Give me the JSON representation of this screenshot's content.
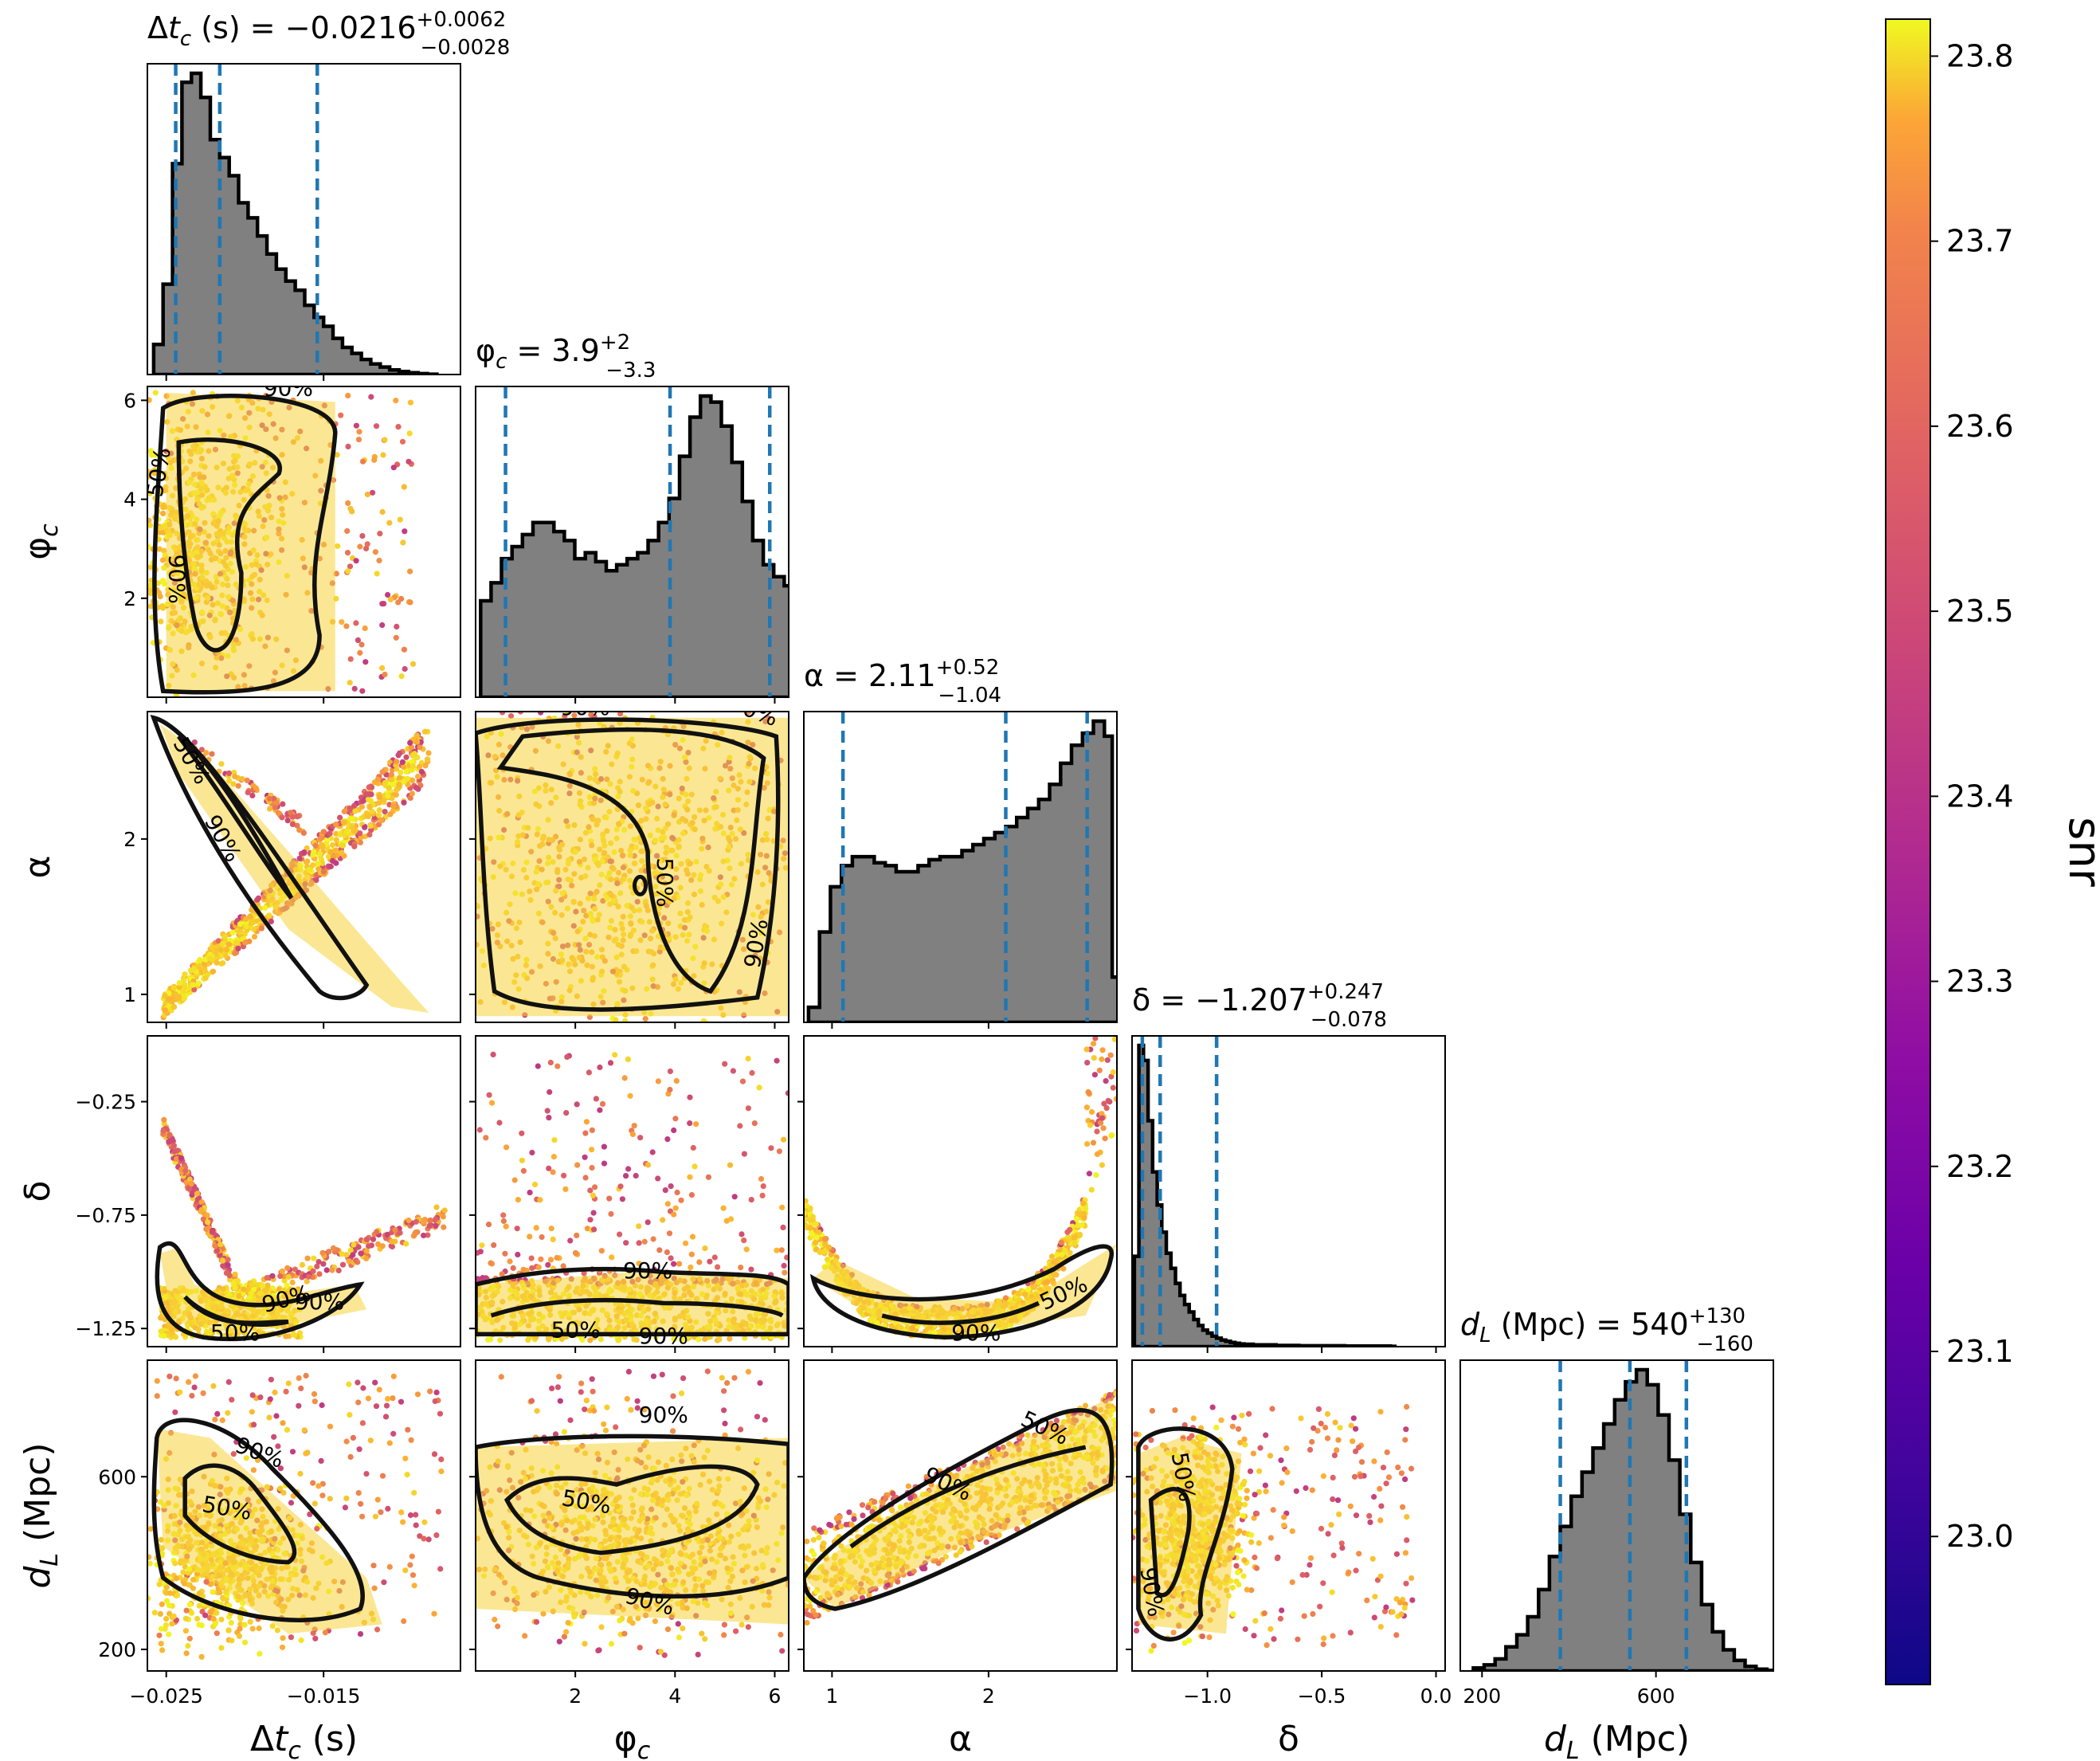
{
  "chart_data": {
    "type": "corner",
    "parameters": [
      {
        "key": "dtc",
        "xlabel": "Δt_c (s)",
        "ylabel": "",
        "title_name": "Δt_c (s)",
        "median": "−0.0216",
        "plus": "+0.0062",
        "minus": "−0.0028",
        "range": [
          -0.0262,
          -0.0063
        ],
        "ticks": [
          -0.025,
          -0.015
        ],
        "tick_labels": [
          "−0.025",
          "−0.015"
        ],
        "quantiles": [
          -0.0244,
          -0.0216,
          -0.0154
        ]
      },
      {
        "key": "phic",
        "xlabel": "φ_c",
        "ylabel": "φ_c",
        "title_name": "φ_c",
        "median": "3.9",
        "plus": "+2",
        "minus": "−3.3",
        "range": [
          0.0,
          6.28
        ],
        "ticks": [
          2,
          4,
          6
        ],
        "tick_labels": [
          "2",
          "4",
          "6"
        ],
        "quantiles": [
          0.6,
          3.9,
          5.9
        ]
      },
      {
        "key": "alpha",
        "xlabel": "α",
        "ylabel": "α",
        "title_name": "α",
        "median": "2.11",
        "plus": "+0.52",
        "minus": "−1.04",
        "range": [
          0.82,
          2.82
        ],
        "ticks": [
          1,
          2
        ],
        "tick_labels": [
          "1",
          "2"
        ],
        "quantiles": [
          1.07,
          2.11,
          2.63
        ]
      },
      {
        "key": "delta",
        "xlabel": "δ",
        "ylabel": "δ",
        "title_name": "δ",
        "median": "−1.207",
        "plus": "+0.247",
        "minus": "−0.078",
        "range": [
          -1.33,
          0.04
        ],
        "ticks": [
          -1.0,
          -0.5,
          0.0
        ],
        "tick_labels": [
          "−1.0",
          "−0.5",
          "0.0"
        ],
        "yticks": [
          -1.25,
          -0.75,
          -0.25
        ],
        "ytick_labels": [
          "−1.25",
          "−0.75",
          "−0.25"
        ],
        "quantiles": [
          -1.285,
          -1.207,
          -0.96
        ]
      },
      {
        "key": "dL",
        "xlabel": "d_L (Mpc)",
        "ylabel": "d_L (Mpc)",
        "title_name": "d_L (Mpc)",
        "median": "540",
        "plus": "+130",
        "minus": "−160",
        "range": [
          150,
          870
        ],
        "ticks": [
          200,
          600
        ],
        "tick_labels": [
          "200",
          "600"
        ],
        "quantiles": [
          380,
          540,
          670
        ]
      }
    ],
    "contour_levels": [
      "50%",
      "90%"
    ],
    "colorbar": {
      "label": "snr",
      "min": 22.92,
      "max": 23.82,
      "ticks": [
        23.0,
        23.1,
        23.2,
        23.3,
        23.4,
        23.5,
        23.6,
        23.7,
        23.8
      ],
      "tick_labels": [
        "23.0",
        "23.1",
        "23.2",
        "23.3",
        "23.4",
        "23.5",
        "23.6",
        "23.7",
        "23.8"
      ],
      "colormap": "plasma"
    },
    "histograms": {
      "dtc": {
        "bins": [
          -0.0258,
          -0.0252,
          -0.0246,
          -0.024,
          -0.0234,
          -0.0228,
          -0.0222,
          -0.0216,
          -0.021,
          -0.0204,
          -0.0198,
          -0.0192,
          -0.0186,
          -0.018,
          -0.0174,
          -0.0168,
          -0.0162,
          -0.0156,
          -0.015,
          -0.0144,
          -0.0138,
          -0.0132,
          -0.0126,
          -0.012,
          -0.0114,
          -0.0108,
          -0.0102,
          -0.0096,
          -0.009,
          -0.0084
        ],
        "counts": [
          0.1,
          0.3,
          0.7,
          0.97,
          1.0,
          0.92,
          0.78,
          0.72,
          0.66,
          0.57,
          0.52,
          0.46,
          0.4,
          0.35,
          0.31,
          0.28,
          0.23,
          0.19,
          0.16,
          0.12,
          0.09,
          0.07,
          0.05,
          0.035,
          0.025,
          0.015,
          0.01,
          0.006,
          0.003,
          0.001
        ]
      },
      "phic": {
        "bins": [
          0.1,
          0.31,
          0.52,
          0.73,
          0.94,
          1.15,
          1.36,
          1.57,
          1.78,
          1.99,
          2.2,
          2.41,
          2.62,
          2.83,
          3.04,
          3.25,
          3.46,
          3.67,
          3.88,
          4.09,
          4.3,
          4.51,
          4.72,
          4.93,
          5.14,
          5.35,
          5.56,
          5.77,
          5.98,
          6.19
        ],
        "counts": [
          0.32,
          0.38,
          0.46,
          0.5,
          0.54,
          0.58,
          0.58,
          0.55,
          0.52,
          0.46,
          0.48,
          0.45,
          0.42,
          0.44,
          0.46,
          0.48,
          0.52,
          0.58,
          0.66,
          0.8,
          0.93,
          1.0,
          0.98,
          0.9,
          0.78,
          0.65,
          0.52,
          0.44,
          0.4,
          0.37
        ]
      },
      "alpha": {
        "bins": [
          0.85,
          0.92,
          0.99,
          1.06,
          1.13,
          1.2,
          1.27,
          1.34,
          1.41,
          1.48,
          1.55,
          1.62,
          1.69,
          1.76,
          1.83,
          1.9,
          1.97,
          2.04,
          2.11,
          2.18,
          2.25,
          2.32,
          2.39,
          2.46,
          2.53,
          2.6,
          2.67,
          2.74,
          2.79
        ],
        "counts": [
          0.05,
          0.3,
          0.45,
          0.52,
          0.55,
          0.55,
          0.53,
          0.52,
          0.5,
          0.5,
          0.52,
          0.54,
          0.55,
          0.55,
          0.57,
          0.59,
          0.61,
          0.63,
          0.65,
          0.68,
          0.71,
          0.74,
          0.79,
          0.86,
          0.92,
          0.96,
          1.0,
          0.95,
          0.15
        ]
      },
      "delta": {
        "bins": [
          -1.32,
          -1.3,
          -1.28,
          -1.26,
          -1.24,
          -1.22,
          -1.2,
          -1.18,
          -1.16,
          -1.14,
          -1.12,
          -1.1,
          -1.08,
          -1.06,
          -1.04,
          -1.02,
          -1.0,
          -0.98,
          -0.96,
          -0.94,
          -0.92,
          -0.9,
          -0.88,
          -0.86,
          -0.84,
          -0.8,
          -0.7,
          -0.6,
          -0.4,
          -0.2
        ],
        "counts": [
          0.3,
          1.0,
          0.95,
          0.75,
          0.58,
          0.47,
          0.38,
          0.31,
          0.26,
          0.21,
          0.17,
          0.14,
          0.115,
          0.09,
          0.07,
          0.055,
          0.045,
          0.035,
          0.028,
          0.022,
          0.018,
          0.014,
          0.011,
          0.009,
          0.008,
          0.006,
          0.004,
          0.003,
          0.002,
          0.001
        ]
      },
      "dL": {
        "bins": [
          180,
          205,
          230,
          255,
          280,
          305,
          330,
          355,
          380,
          405,
          430,
          455,
          480,
          505,
          530,
          555,
          580,
          605,
          630,
          655,
          680,
          705,
          730,
          755,
          780,
          805,
          830,
          855
        ],
        "counts": [
          0.01,
          0.02,
          0.04,
          0.08,
          0.12,
          0.18,
          0.27,
          0.38,
          0.48,
          0.58,
          0.66,
          0.74,
          0.82,
          0.9,
          0.96,
          1.0,
          0.95,
          0.85,
          0.7,
          0.52,
          0.36,
          0.22,
          0.13,
          0.07,
          0.035,
          0.015,
          0.006,
          0.002
        ]
      }
    }
  }
}
